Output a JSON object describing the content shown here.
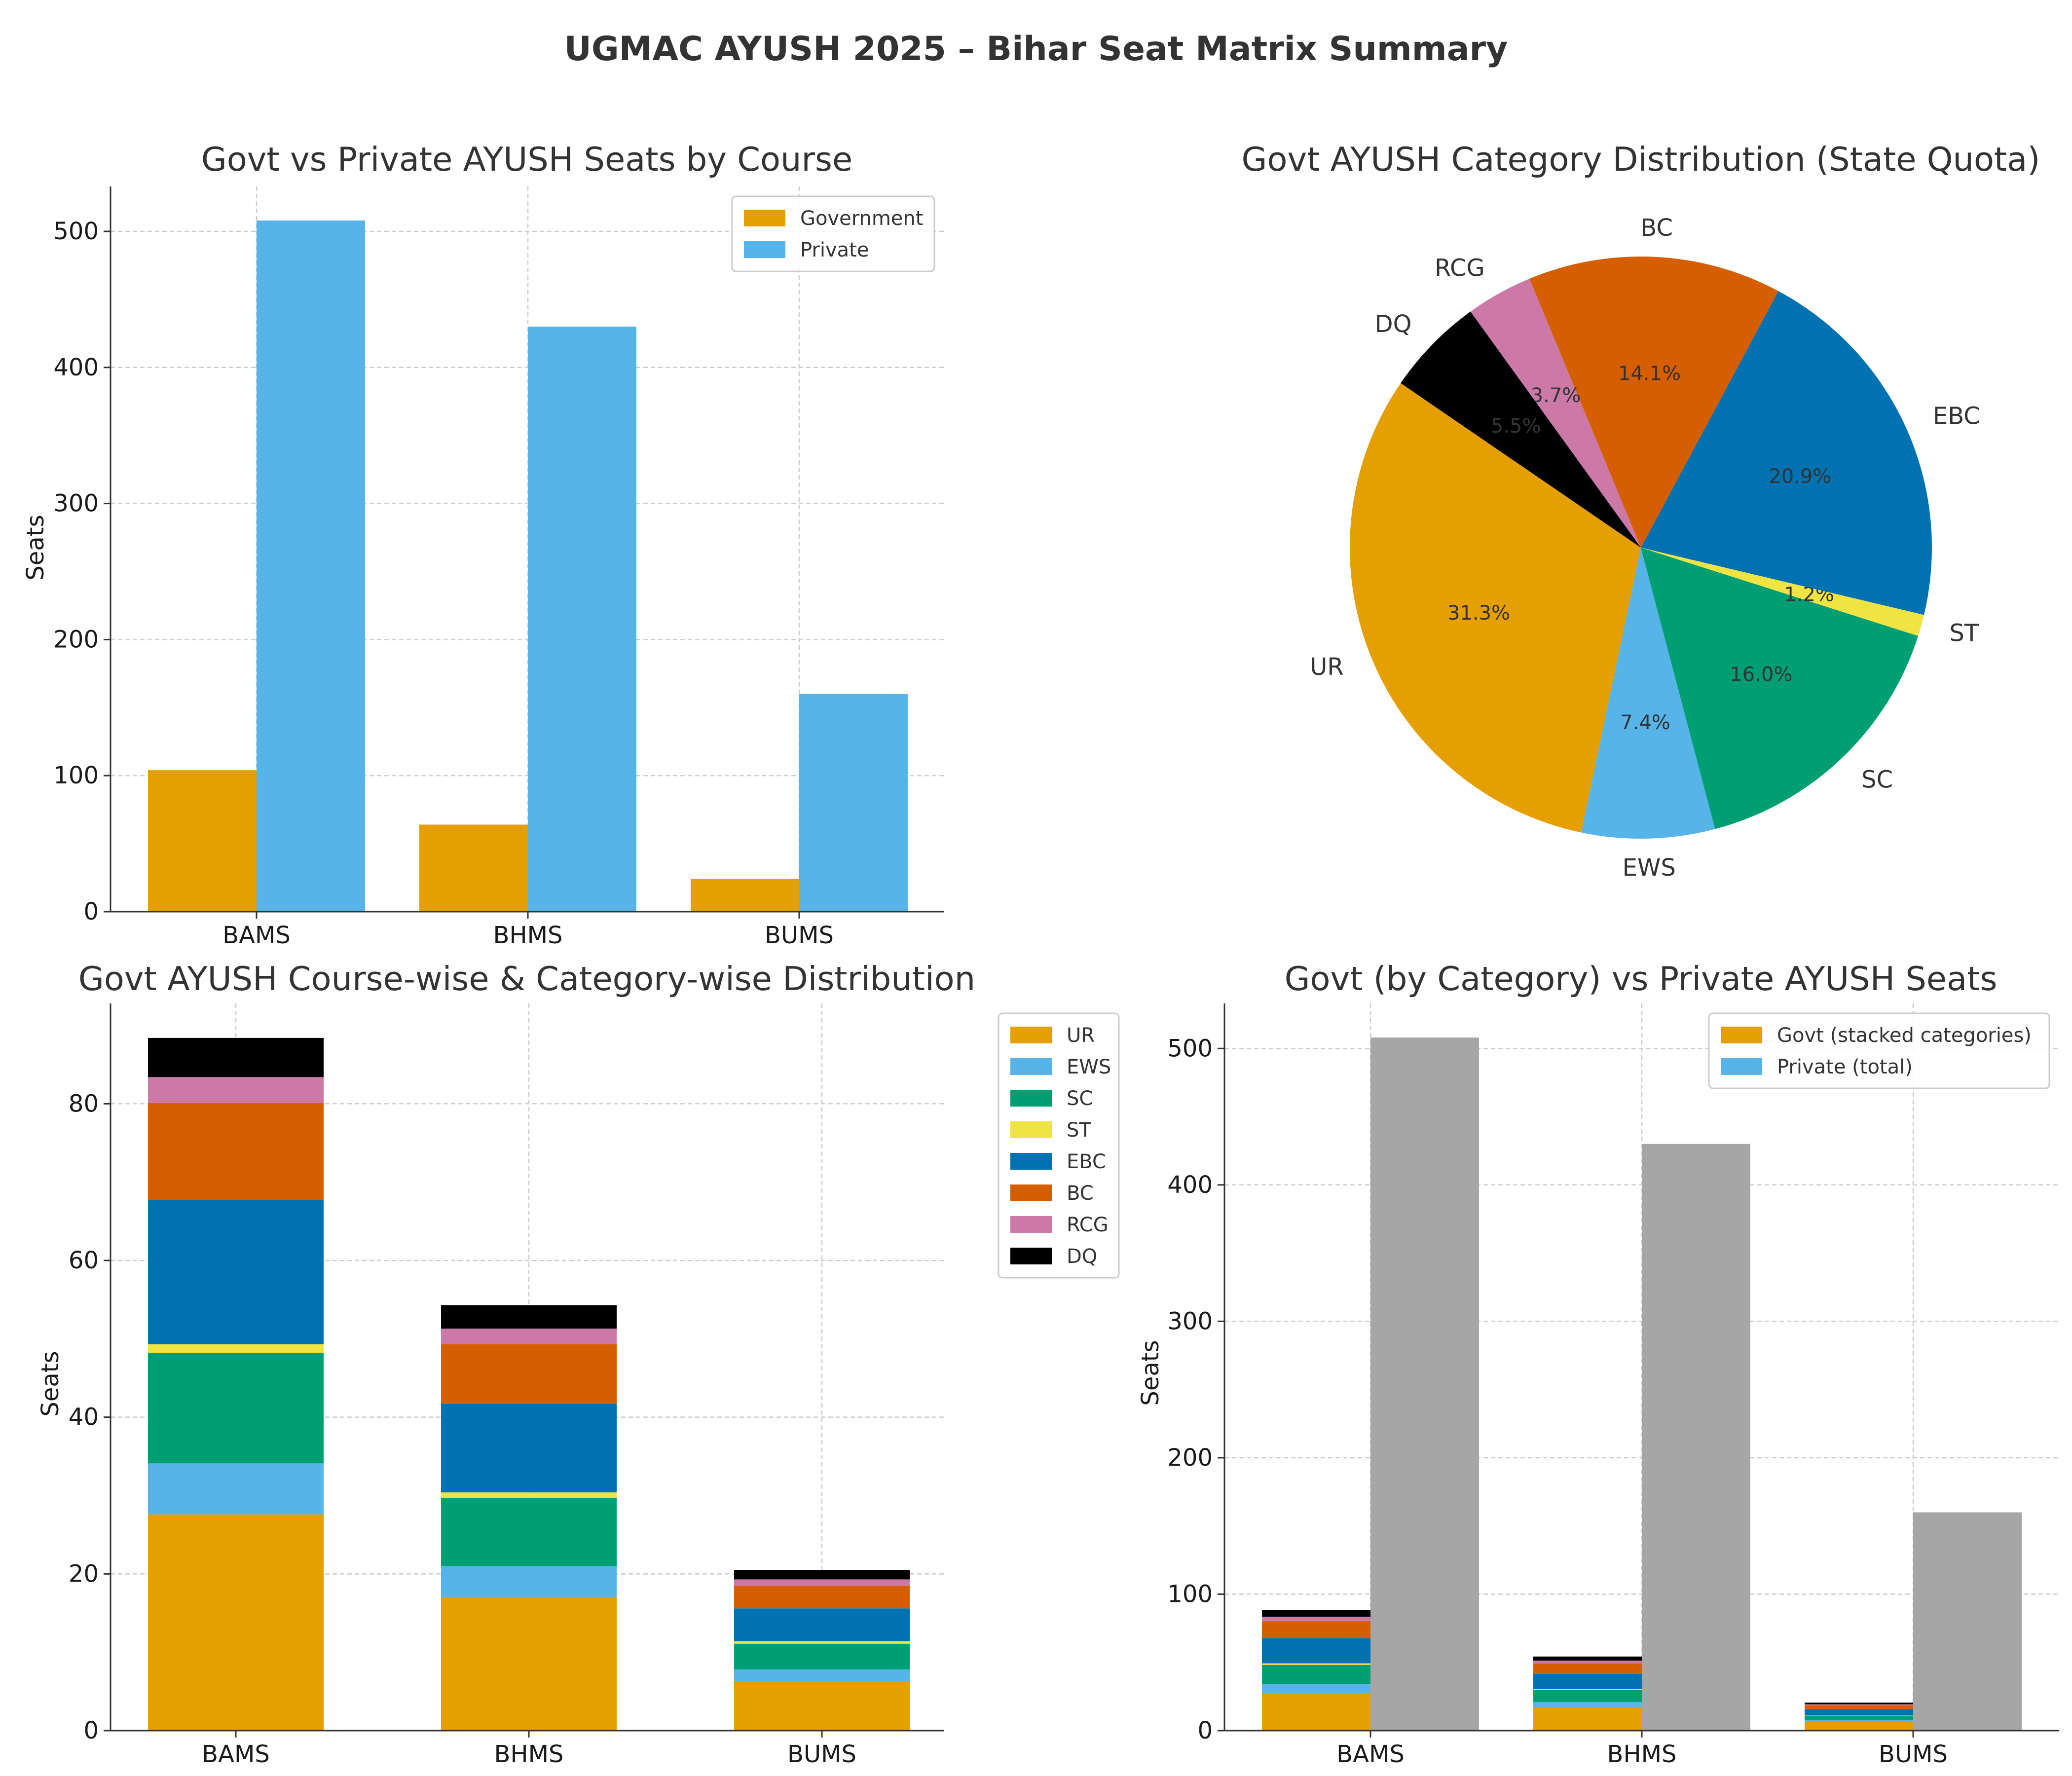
{
  "figure_title": "UGMAC AYUSH 2025 – Bihar Seat Matrix Summary",
  "colors": {
    "UR": "#E69F00",
    "EWS": "#56B4E9",
    "SC": "#009E73",
    "ST": "#F0E442",
    "EBC": "#0072B2",
    "BC": "#D55E00",
    "RCG": "#CC79A7",
    "DQ": "#000000",
    "Government": "#E69F00",
    "Private": "#56B4E9",
    "PrivateGray": "#A6A6A6"
  },
  "chart_data": [
    {
      "id": "govt-vs-private",
      "type": "bar",
      "title": "Govt vs Private AYUSH Seats by Course",
      "xlabel": "",
      "ylabel": "Seats",
      "categories": [
        "BAMS",
        "BHMS",
        "BUMS"
      ],
      "series": [
        {
          "name": "Government",
          "values": [
            104,
            64,
            24
          ]
        },
        {
          "name": "Private",
          "values": [
            508,
            430,
            160
          ]
        }
      ],
      "ylim": [
        0,
        533
      ],
      "yticks": [
        0,
        100,
        200,
        300,
        400,
        500
      ],
      "grid": true,
      "legend": "top-right"
    },
    {
      "id": "category-pie",
      "type": "pie",
      "title": "Govt AYUSH Category Distribution (State Quota)",
      "labels": [
        "UR",
        "EWS",
        "SC",
        "ST",
        "EBC",
        "BC",
        "RCG",
        "DQ"
      ],
      "values": [
        31.3,
        7.4,
        16.0,
        1.2,
        20.9,
        14.1,
        3.7,
        5.5
      ],
      "pct_labels": [
        "31.3%",
        "7.4%",
        "16.0%",
        "1.2%",
        "20.9%",
        "14.1%",
        "3.7%",
        "5.5%"
      ]
    },
    {
      "id": "course-category",
      "type": "bar",
      "stacked": true,
      "title": "Govt AYUSH Course-wise & Category-wise Distribution",
      "xlabel": "",
      "ylabel": "Seats",
      "categories": [
        "BAMS",
        "BHMS",
        "BUMS"
      ],
      "series": [
        {
          "name": "UR",
          "values": [
            27.6,
            17.0,
            6.3
          ]
        },
        {
          "name": "EWS",
          "values": [
            6.5,
            4.0,
            1.5
          ]
        },
        {
          "name": "SC",
          "values": [
            14.1,
            8.7,
            3.3
          ]
        },
        {
          "name": "ST",
          "values": [
            1.1,
            0.7,
            0.3
          ]
        },
        {
          "name": "EBC",
          "values": [
            18.4,
            11.3,
            4.2
          ]
        },
        {
          "name": "BC",
          "values": [
            12.4,
            7.6,
            2.9
          ]
        },
        {
          "name": "RCG",
          "values": [
            3.3,
            2.0,
            0.8
          ]
        },
        {
          "name": "DQ",
          "values": [
            5.0,
            3.0,
            1.2
          ]
        }
      ],
      "ylim": [
        0,
        92.8
      ],
      "yticks": [
        0,
        20,
        40,
        60,
        80
      ],
      "grid": true,
      "legend": "outside-right"
    },
    {
      "id": "govt-stacked-vs-private",
      "type": "bar",
      "stacked": true,
      "title": "Govt (by Category) vs Private AYUSH Seats",
      "xlabel": "",
      "ylabel": "Seats",
      "categories": [
        "BAMS",
        "BHMS",
        "BUMS"
      ],
      "series": [
        {
          "name": "UR",
          "values": [
            27.6,
            17.0,
            6.3
          ]
        },
        {
          "name": "EWS",
          "values": [
            6.5,
            4.0,
            1.5
          ]
        },
        {
          "name": "SC",
          "values": [
            14.1,
            8.7,
            3.3
          ]
        },
        {
          "name": "ST",
          "values": [
            1.1,
            0.7,
            0.3
          ]
        },
        {
          "name": "EBC",
          "values": [
            18.4,
            11.3,
            4.2
          ]
        },
        {
          "name": "BC",
          "values": [
            12.4,
            7.6,
            2.9
          ]
        },
        {
          "name": "RCG",
          "values": [
            3.3,
            2.0,
            0.8
          ]
        },
        {
          "name": "DQ",
          "values": [
            5.0,
            3.0,
            1.2
          ]
        }
      ],
      "private_values": [
        508,
        430,
        160
      ],
      "legend_entries": [
        "Govt (stacked categories)",
        "Private (total)"
      ],
      "ylim": [
        0,
        533
      ],
      "yticks": [
        0,
        100,
        200,
        300,
        400,
        500
      ],
      "grid": true,
      "legend": "top-right"
    }
  ]
}
